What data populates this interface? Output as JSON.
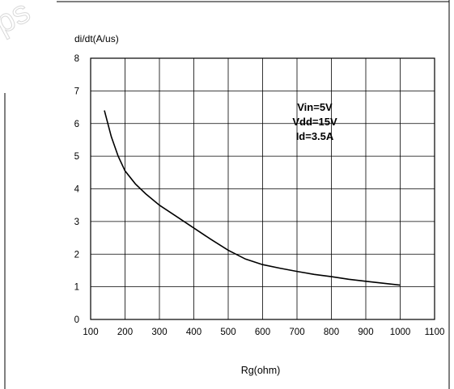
{
  "watermark": "ps",
  "chart_data": {
    "type": "line",
    "title": "",
    "ylabel": "di/dt(A/us)",
    "xlabel": "Rg(ohm)",
    "xlim": [
      100,
      1100
    ],
    "ylim": [
      0,
      8
    ],
    "xticks": [
      100,
      200,
      300,
      400,
      500,
      600,
      700,
      800,
      900,
      1000,
      1100
    ],
    "yticks": [
      0,
      1,
      2,
      3,
      4,
      5,
      6,
      7,
      8
    ],
    "grid": true,
    "annotation": [
      "Vin=5V",
      "Vdd=15V",
      "Id=3.5A"
    ],
    "series": [
      {
        "x": [
          140,
          160,
          180,
          200,
          230,
          260,
          300,
          350,
          400,
          450,
          500,
          550,
          600,
          650,
          700,
          750,
          800,
          850,
          900,
          950,
          1000
        ],
        "y": [
          6.4,
          5.6,
          5.0,
          4.55,
          4.15,
          3.85,
          3.5,
          3.15,
          2.8,
          2.45,
          2.12,
          1.85,
          1.68,
          1.57,
          1.47,
          1.38,
          1.31,
          1.23,
          1.17,
          1.11,
          1.05
        ]
      }
    ]
  }
}
